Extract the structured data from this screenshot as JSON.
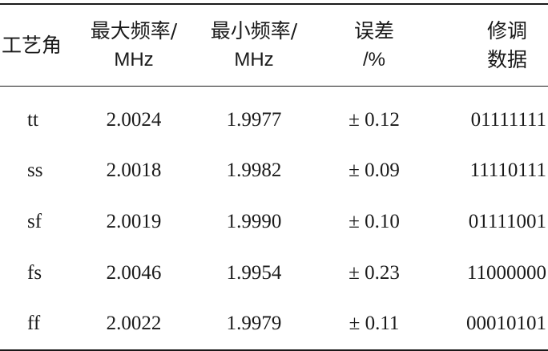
{
  "table": {
    "headers": [
      {
        "line1": "工艺角",
        "line2": ""
      },
      {
        "line1": "最大频率/",
        "line2": "MHz"
      },
      {
        "line1": "最小频率/",
        "line2": "MHz"
      },
      {
        "line1": "误差",
        "line2": "/%"
      },
      {
        "line1": "修调",
        "line2": "数据"
      }
    ],
    "rows": [
      {
        "corner": "tt",
        "max_freq": "2.0024",
        "min_freq": "1.9977",
        "error": "± 0.12",
        "trim": "01111111"
      },
      {
        "corner": "ss",
        "max_freq": "2.0018",
        "min_freq": "1.9982",
        "error": "± 0.09",
        "trim": "11110111"
      },
      {
        "corner": "sf",
        "max_freq": "2.0019",
        "min_freq": "1.9990",
        "error": "± 0.10",
        "trim": "01111001"
      },
      {
        "corner": "fs",
        "max_freq": "2.0046",
        "min_freq": "1.9954",
        "error": "± 0.23",
        "trim": "11000000"
      },
      {
        "corner": "ff",
        "max_freq": "2.0022",
        "min_freq": "1.9979",
        "error": "± 0.11",
        "trim": "00010101"
      }
    ]
  }
}
